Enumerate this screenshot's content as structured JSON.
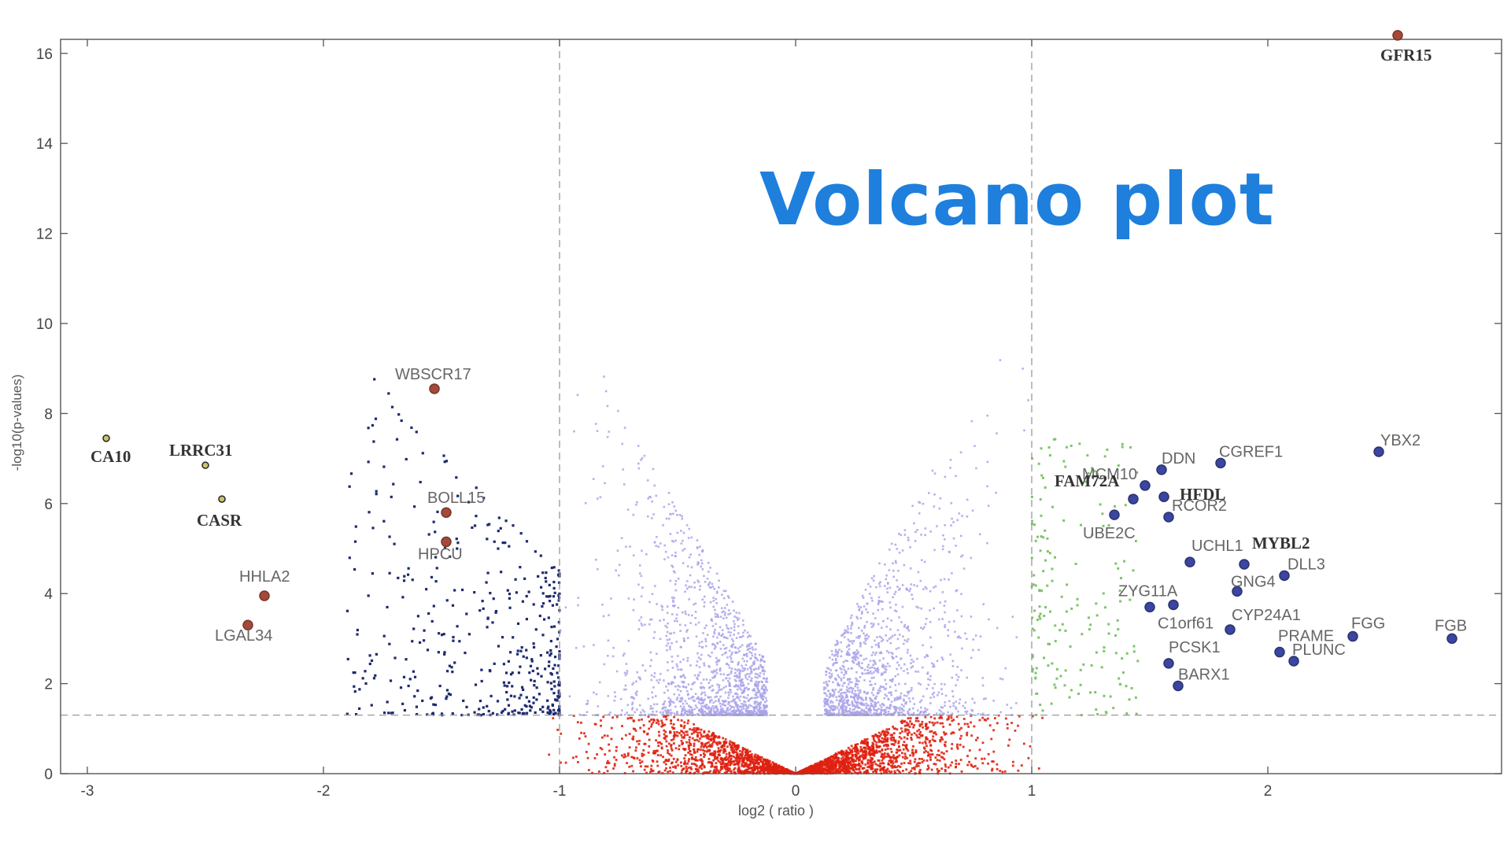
{
  "overlay_title": "Volcano plot",
  "chart_data": {
    "type": "scatter",
    "title": "",
    "xlabel": "log2 ( ratio )",
    "ylabel": "-log10(p-values)",
    "xlim": [
      -3.1,
      3.0
    ],
    "ylim": [
      0,
      16.4
    ],
    "x_ticks": [
      -3,
      -2,
      -1,
      0,
      1,
      2
    ],
    "x_tick_labels": [
      "-3",
      "-2",
      "-1",
      "0",
      "1",
      "2"
    ],
    "y_ticks": [
      0,
      2,
      4,
      6,
      8,
      10,
      12,
      14,
      16
    ],
    "y_tick_labels": [
      "0",
      "2",
      "4",
      "6",
      "8",
      "10",
      "12",
      "14",
      "16"
    ],
    "threshold_lines": {
      "x": [
        -1,
        1
      ],
      "y": 1.3
    },
    "grid": false,
    "colors": {
      "not_significant": "#e02010",
      "small_change": "#a9a3ea",
      "down_regulated": "#1d2a6e",
      "up_regulated": "#7fc46a",
      "down_highlight": "#a34a3c",
      "up_highlight": "#3a46a0",
      "extreme_down": "#c9c56a"
    },
    "labeled_points": [
      {
        "gene": "GFR15",
        "x": 2.55,
        "y": 16.4,
        "group": "highlight-red",
        "style": "serif"
      },
      {
        "gene": "YBX2",
        "x": 2.47,
        "y": 7.15,
        "group": "up",
        "style": "sans"
      },
      {
        "gene": "CGREF1",
        "x": 1.8,
        "y": 6.9,
        "group": "up",
        "style": "sans"
      },
      {
        "gene": "DDN",
        "x": 1.55,
        "y": 6.75,
        "group": "up",
        "style": "sans"
      },
      {
        "gene": "MCM10",
        "x": 1.48,
        "y": 6.4,
        "group": "up",
        "style": "sans"
      },
      {
        "gene": "HFDL",
        "x": 1.56,
        "y": 6.15,
        "group": "up",
        "style": "serif"
      },
      {
        "gene": "FAM72A",
        "x": 1.43,
        "y": 6.1,
        "group": "up",
        "style": "serif"
      },
      {
        "gene": "RCOR2",
        "x": 1.58,
        "y": 5.7,
        "group": "up",
        "style": "sans"
      },
      {
        "gene": "UBE2C",
        "x": 1.35,
        "y": 5.75,
        "group": "up",
        "style": "sans"
      },
      {
        "gene": "MYBL2",
        "x": 1.9,
        "y": 4.65,
        "group": "up",
        "style": "serif"
      },
      {
        "gene": "UCHL1",
        "x": 1.67,
        "y": 4.7,
        "group": "up",
        "style": "sans"
      },
      {
        "gene": "DLL3",
        "x": 2.07,
        "y": 4.4,
        "group": "up",
        "style": "sans"
      },
      {
        "gene": "GNG4",
        "x": 1.87,
        "y": 4.05,
        "group": "up",
        "style": "sans"
      },
      {
        "gene": "ZYG11A",
        "x": 1.5,
        "y": 3.7,
        "group": "up",
        "style": "sans"
      },
      {
        "gene": "C1orf61",
        "x": 1.6,
        "y": 3.75,
        "group": "up",
        "style": "sans"
      },
      {
        "gene": "CYP24A1",
        "x": 1.84,
        "y": 3.2,
        "group": "up",
        "style": "sans"
      },
      {
        "gene": "FGG",
        "x": 2.36,
        "y": 3.05,
        "group": "up",
        "style": "sans"
      },
      {
        "gene": "FGB",
        "x": 2.78,
        "y": 3.0,
        "group": "up",
        "style": "sans"
      },
      {
        "gene": "PRAME",
        "x": 2.05,
        "y": 2.7,
        "group": "up",
        "style": "sans"
      },
      {
        "gene": "PCSK1",
        "x": 1.58,
        "y": 2.45,
        "group": "up",
        "style": "sans"
      },
      {
        "gene": "PLUNC",
        "x": 2.11,
        "y": 2.5,
        "group": "up",
        "style": "sans"
      },
      {
        "gene": "BARX1",
        "x": 1.62,
        "y": 1.95,
        "group": "up",
        "style": "sans"
      },
      {
        "gene": "WBSCR17",
        "x": -1.53,
        "y": 8.55,
        "group": "down",
        "style": "sans"
      },
      {
        "gene": "BOLL15",
        "x": -1.48,
        "y": 5.8,
        "group": "down",
        "style": "sans"
      },
      {
        "gene": "HPCU",
        "x": -1.48,
        "y": 5.15,
        "group": "down",
        "style": "sans"
      },
      {
        "gene": "HHLA2",
        "x": -2.25,
        "y": 3.95,
        "group": "down",
        "style": "sans"
      },
      {
        "gene": "LGAL34",
        "x": -2.32,
        "y": 3.3,
        "group": "down",
        "style": "sans"
      },
      {
        "gene": "CA10",
        "x": -2.92,
        "y": 7.45,
        "group": "extreme",
        "style": "serif"
      },
      {
        "gene": "LRRC31",
        "x": -2.5,
        "y": 6.85,
        "group": "extreme",
        "style": "serif"
      },
      {
        "gene": "CASR",
        "x": -2.43,
        "y": 6.1,
        "group": "extreme",
        "style": "serif"
      }
    ]
  }
}
